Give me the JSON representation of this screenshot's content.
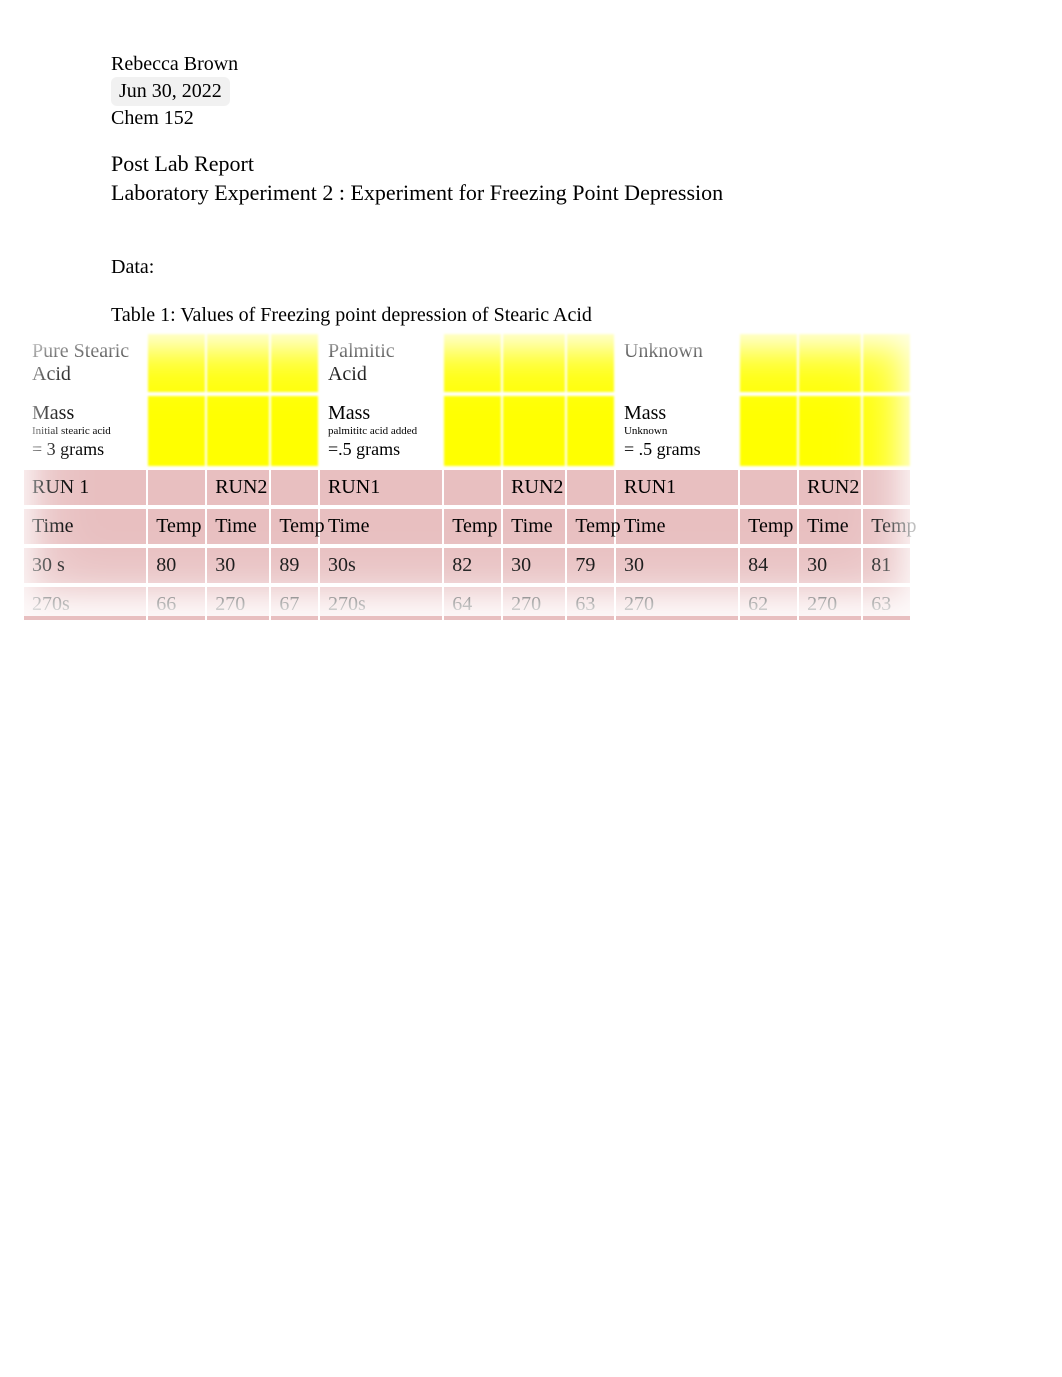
{
  "header": {
    "author": "Rebecca Brown",
    "date": "Jun 30, 2022",
    "course": "Chem 152"
  },
  "title": {
    "line1": "Post Lab Report",
    "line2": "Laboratory Experiment 2 : Experiment for Freezing Point Depression"
  },
  "data_section_label": "Data:",
  "table_caption": "Table 1: Values of Freezing point depression of Stearic Acid",
  "table": {
    "colors": {
      "yellow": "#ffff00",
      "pink": "#e8bfc0",
      "text": "#000000",
      "background": "#ffffff"
    },
    "sections": [
      {
        "header": "Pure Stearic Acid",
        "mass_label": "Mass",
        "mass_sub": "Initial stearic acid",
        "mass_value": "= 3 grams",
        "run1_label": "RUN 1",
        "run2_label": "RUN2",
        "tt_labels": {
          "time": "Time",
          "temp": "Temp"
        },
        "rows": [
          {
            "r1_time": "30 s",
            "r1_temp": "80",
            "r2_time": "30",
            "r2_temp": "89"
          },
          {
            "r1_time": "270s",
            "r1_temp": "66",
            "r2_time": "270",
            "r2_temp": "67"
          }
        ]
      },
      {
        "header": "Palmitic Acid",
        "mass_label": "Mass",
        "mass_sub": "palmititc acid added",
        "mass_value": "=.5 grams",
        "run1_label": "RUN1",
        "run2_label": "RUN2",
        "tt_labels": {
          "time": "Time",
          "temp": "Temp"
        },
        "rows": [
          {
            "r1_time": "30s",
            "r1_temp": "82",
            "r2_time": "30",
            "r2_temp": "79"
          },
          {
            "r1_time": "270s",
            "r1_temp": "64",
            "r2_time": "270",
            "r2_temp": "63"
          }
        ]
      },
      {
        "header": "Unknown",
        "mass_label": "Mass",
        "mass_sub": "Unknown",
        "mass_value": "=  .5 grams",
        "run1_label": "RUN1",
        "run2_label": "RUN2",
        "tt_labels": {
          "time": "Time",
          "temp": "Temp"
        },
        "rows": [
          {
            "r1_time": "30",
            "r1_temp": "84",
            "r2_time": "30",
            "r2_temp": "81"
          },
          {
            "r1_time": "270",
            "r1_temp": "62",
            "r2_time": "270",
            "r2_temp": "63"
          }
        ]
      }
    ]
  }
}
